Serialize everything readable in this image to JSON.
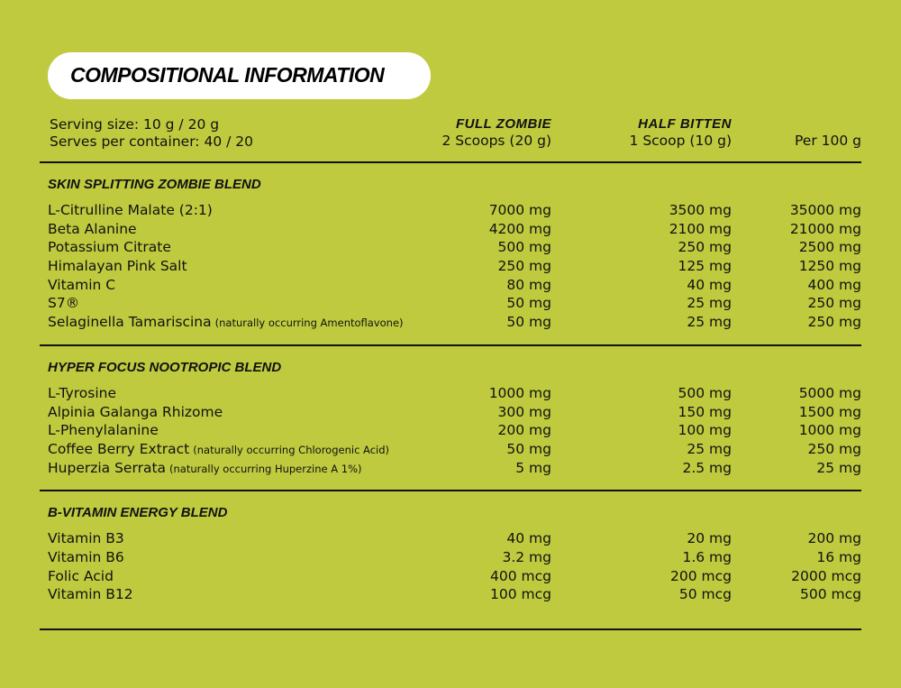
{
  "title": "COMPOSITIONAL INFORMATION",
  "serving": {
    "size": "Serving size: 10 g / 20 g",
    "serves": "Serves per container: 40 / 20"
  },
  "columns": [
    {
      "name": "FULL ZOMBIE",
      "sub": "2 Scoops (20 g)"
    },
    {
      "name": "HALF BITTEN",
      "sub": "1 Scoop (10 g)"
    },
    {
      "name": "",
      "sub": "Per 100 g"
    }
  ],
  "sections": [
    {
      "title": "SKIN SPLITTING ZOMBIE BLEND",
      "rows": [
        {
          "name": "L-Citrulline Malate (2:1)",
          "note": "",
          "v": [
            "7000 mg",
            "3500 mg",
            "35000 mg"
          ]
        },
        {
          "name": "Beta Alanine",
          "note": "",
          "v": [
            "4200 mg",
            "2100 mg",
            "21000 mg"
          ]
        },
        {
          "name": "Potassium Citrate",
          "note": "",
          "v": [
            "500 mg",
            "250 mg",
            "2500 mg"
          ]
        },
        {
          "name": "Himalayan Pink Salt",
          "note": "",
          "v": [
            "250 mg",
            "125 mg",
            "1250 mg"
          ]
        },
        {
          "name": "Vitamin C",
          "note": "",
          "v": [
            "80 mg",
            "40 mg",
            "400 mg"
          ]
        },
        {
          "name": "S7®",
          "note": "",
          "v": [
            "50 mg",
            "25 mg",
            "250 mg"
          ]
        },
        {
          "name": "Selaginella Tamariscina",
          "note": "(naturally occurring Amentoflavone)",
          "v": [
            "50 mg",
            "25 mg",
            "250 mg"
          ]
        }
      ]
    },
    {
      "title": "HYPER FOCUS NOOTROPIC BLEND",
      "rows": [
        {
          "name": "L-Tyrosine",
          "note": "",
          "v": [
            "1000 mg",
            "500 mg",
            "5000 mg"
          ]
        },
        {
          "name": "Alpinia Galanga Rhizome",
          "note": "",
          "v": [
            "300 mg",
            "150 mg",
            "1500 mg"
          ]
        },
        {
          "name": "L-Phenylalanine",
          "note": "",
          "v": [
            "200 mg",
            "100 mg",
            "1000 mg"
          ]
        },
        {
          "name": "Coffee Berry Extract",
          "note": "(naturally occurring Chlorogenic Acid)",
          "v": [
            "50 mg",
            "25 mg",
            "250 mg"
          ]
        },
        {
          "name": "Huperzia Serrata",
          "note": "(naturally occurring Huperzine A 1%)",
          "v": [
            "5 mg",
            "2.5 mg",
            "25 mg"
          ]
        }
      ]
    },
    {
      "title": "B-VITAMIN ENERGY BLEND",
      "rows": [
        {
          "name": "Vitamin B3",
          "note": "",
          "v": [
            "40 mg",
            "20 mg",
            "200 mg"
          ]
        },
        {
          "name": "Vitamin B6",
          "note": "",
          "v": [
            "3.2 mg",
            "1.6 mg",
            "16 mg"
          ]
        },
        {
          "name": "Folic Acid",
          "note": "",
          "v": [
            "400 mcg",
            "200 mcg",
            "2000 mcg"
          ]
        },
        {
          "name": "Vitamin B12",
          "note": "",
          "v": [
            "100 mcg",
            "50 mcg",
            "500 mcg"
          ]
        }
      ]
    }
  ],
  "colors": {
    "background": "#bfca3f",
    "text": "#111111",
    "pill": "#ffffff"
  }
}
